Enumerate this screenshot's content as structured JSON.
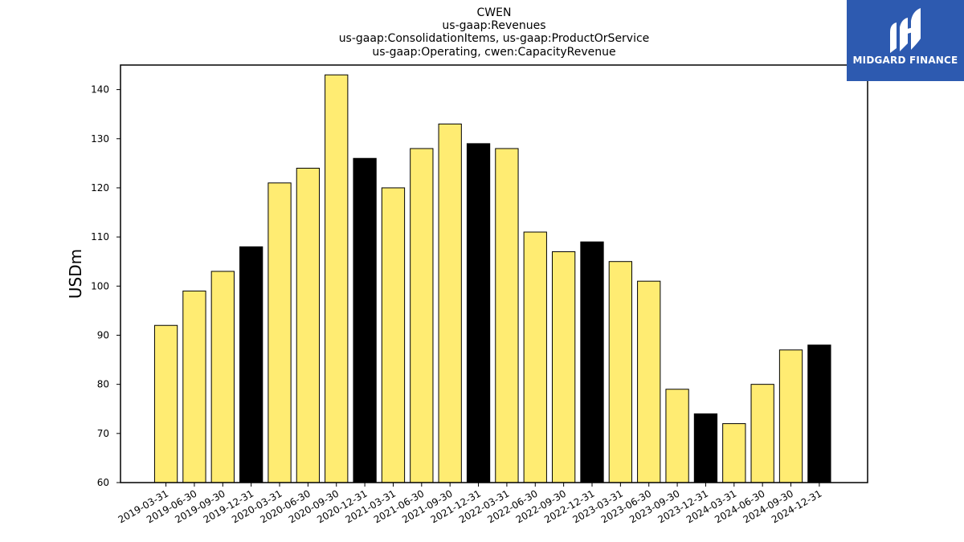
{
  "brand": {
    "name": "MIDGARD FINANCE",
    "color": "#2d5ab0",
    "icon": "midgard-logo-icon"
  },
  "colors": {
    "bar_default": "#ffec72",
    "bar_year_end": "#000000",
    "edge": "#000000"
  },
  "chart_data": {
    "type": "bar",
    "title_lines": [
      "CWEN",
      "us-gaap:Revenues",
      "us-gaap:ConsolidationItems, us-gaap:ProductOrService",
      "us-gaap:Operating, cwen:CapacityRevenue"
    ],
    "xlabel": "",
    "ylabel": "USDm",
    "ylim": [
      60,
      145
    ],
    "yticks": [
      60,
      70,
      80,
      90,
      100,
      110,
      120,
      130,
      140
    ],
    "grid": false,
    "categories": [
      "2019-03-31",
      "2019-06-30",
      "2019-09-30",
      "2019-12-31",
      "2020-03-31",
      "2020-06-30",
      "2020-09-30",
      "2020-12-31",
      "2021-03-31",
      "2021-06-30",
      "2021-09-30",
      "2021-12-31",
      "2022-03-31",
      "2022-06-30",
      "2022-09-30",
      "2022-12-31",
      "2023-03-31",
      "2023-06-30",
      "2023-09-30",
      "2023-12-31",
      "2024-03-31",
      "2024-06-30",
      "2024-09-30",
      "2024-12-31"
    ],
    "values": [
      92,
      99,
      103,
      108,
      121,
      124,
      143,
      126,
      120,
      128,
      133,
      129,
      128,
      111,
      107,
      109,
      105,
      101,
      79,
      74,
      72,
      80,
      87,
      88
    ],
    "highlight": [
      false,
      false,
      false,
      true,
      false,
      false,
      false,
      true,
      false,
      false,
      false,
      true,
      false,
      false,
      false,
      true,
      false,
      false,
      false,
      true,
      false,
      false,
      false,
      true
    ]
  }
}
